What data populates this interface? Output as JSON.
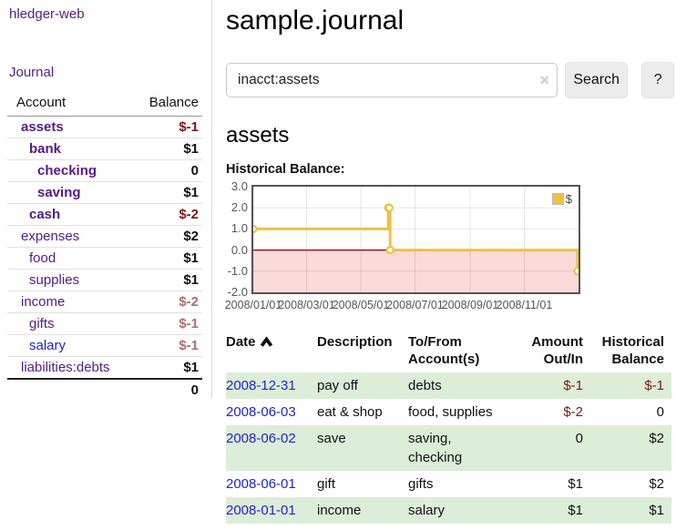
{
  "app": {
    "name": "hledger-web"
  },
  "colors": {
    "link_purple": "#551a8b",
    "link_blue": "#2222cc",
    "negative_strong": "#801515",
    "negative_soft": "#b76c6c",
    "row_green": "#dcedd8",
    "series_gold": "#edc240",
    "chart_negative_bg": "#fbdada",
    "zero_line": "#8b0000",
    "chart_border": "#545454"
  },
  "sidebar": {
    "app_link": "hledger-web",
    "journal_link": "Journal",
    "accounts_table": {
      "headers": [
        "Account",
        "Balance"
      ],
      "rows": [
        {
          "name": "assets",
          "depth": 1,
          "balance": "$-1",
          "matched": true,
          "blue": false
        },
        {
          "name": "bank",
          "depth": 2,
          "balance": "$1",
          "matched": true,
          "blue": false
        },
        {
          "name": "checking",
          "depth": 3,
          "balance": "0",
          "matched": true,
          "blue": false
        },
        {
          "name": "saving",
          "depth": 3,
          "balance": "$1",
          "matched": true,
          "blue": false
        },
        {
          "name": "cash",
          "depth": 2,
          "balance": "$-2",
          "matched": true,
          "blue": false
        },
        {
          "name": "expenses",
          "depth": 1,
          "balance": "$2",
          "matched": false,
          "blue": false
        },
        {
          "name": "food",
          "depth": 2,
          "balance": "$1",
          "matched": false,
          "blue": false
        },
        {
          "name": "supplies",
          "depth": 2,
          "balance": "$1",
          "matched": false,
          "blue": false
        },
        {
          "name": "income",
          "depth": 1,
          "balance": "$-2",
          "matched": false,
          "blue": false
        },
        {
          "name": "gifts",
          "depth": 2,
          "balance": "$-1",
          "matched": false,
          "blue": false
        },
        {
          "name": "salary",
          "depth": 2,
          "balance": "$-1",
          "matched": false,
          "blue": true
        },
        {
          "name": "liabilities:debts",
          "depth": 1,
          "balance": "$1",
          "matched": false,
          "blue": false
        }
      ],
      "total": "0"
    }
  },
  "main": {
    "title": "sample.journal",
    "search": {
      "value": "inacct:assets",
      "clear_icon": "×",
      "button_label": "Search",
      "help_button_label": "?"
    },
    "account_heading": "assets",
    "chart_label": "Historical Balance:"
  },
  "chart_data": {
    "type": "line",
    "subtype": "step",
    "title": "Historical Balance:",
    "series": [
      {
        "name": "$",
        "color": "#edc240",
        "points": [
          [
            "2008-01-01",
            1
          ],
          [
            "2008-06-01",
            2
          ],
          [
            "2008-06-02",
            2
          ],
          [
            "2008-06-03",
            0
          ],
          [
            "2008-12-31",
            -1
          ]
        ]
      }
    ],
    "x_domain": [
      "2008-01-01",
      "2009-01-01"
    ],
    "ylim": [
      -2,
      3
    ],
    "x_ticks": [
      {
        "date": "2008-01-01",
        "label": "2008/01/01"
      },
      {
        "date": "2008-03-01",
        "label": "2008/03/01"
      },
      {
        "date": "2008-05-01",
        "label": "2008/05/01"
      },
      {
        "date": "2008-07-01",
        "label": "2008/07/01"
      },
      {
        "date": "2008-09-01",
        "label": "2008/09/01"
      },
      {
        "date": "2008-11-01",
        "label": "2008/11/01"
      }
    ],
    "y_ticks": [
      {
        "value": 3,
        "label": "3.0"
      },
      {
        "value": 2,
        "label": "2.0"
      },
      {
        "value": 1,
        "label": "1.0"
      },
      {
        "value": 0,
        "label": "0.0"
      },
      {
        "value": -1,
        "label": "-1.0"
      },
      {
        "value": -2,
        "label": "-2.0"
      }
    ],
    "grid": true,
    "legend": {
      "label": "$",
      "position": "ne"
    },
    "negative_region": true
  },
  "register_table": {
    "columns": [
      {
        "label": "Date",
        "sort": "asc",
        "align": "left"
      },
      {
        "label": "Description",
        "align": "left"
      },
      {
        "label": "To/From Account(s)",
        "align": "left"
      },
      {
        "label": "Amount Out/In",
        "align": "right"
      },
      {
        "label": "Historical Balance",
        "align": "right"
      }
    ],
    "rows": [
      {
        "date": "2008-12-31",
        "description": "pay off",
        "accounts": "debts",
        "amount": "$-1",
        "balance": "$-1",
        "green": true
      },
      {
        "date": "2008-06-03",
        "description": "eat & shop",
        "accounts": "food, supplies",
        "amount": "$-2",
        "balance": "0",
        "green": false
      },
      {
        "date": "2008-06-02",
        "description": "save",
        "accounts": "saving, checking",
        "amount": "0",
        "balance": "$2",
        "green": true
      },
      {
        "date": "2008-06-01",
        "description": "gift",
        "accounts": "gifts",
        "amount": "$1",
        "balance": "$2",
        "green": false
      },
      {
        "date": "2008-01-01",
        "description": "income",
        "accounts": "salary",
        "amount": "$1",
        "balance": "$1",
        "green": true
      }
    ]
  }
}
